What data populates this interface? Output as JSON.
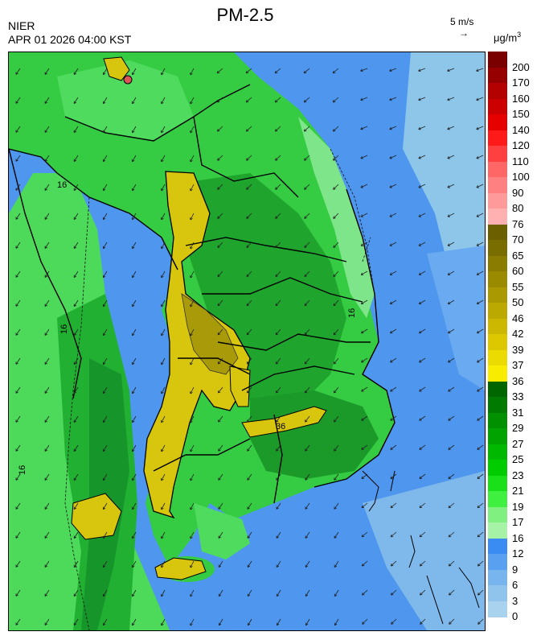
{
  "header": {
    "title": "PM-2.5",
    "agency": "NIER",
    "datetime": "APR 01 2026 04:00 KST",
    "wind_scale": "5 m/s",
    "wind_arrow": "→",
    "unit_base": "μg/m",
    "unit_exp": "3"
  },
  "legend": {
    "items": [
      {
        "label": "200",
        "color": "#7a0000"
      },
      {
        "label": "170",
        "color": "#960000"
      },
      {
        "label": "160",
        "color": "#b30000"
      },
      {
        "label": "150",
        "color": "#cc0000"
      },
      {
        "label": "140",
        "color": "#e60000"
      },
      {
        "label": "120",
        "color": "#ff1a1a"
      },
      {
        "label": "110",
        "color": "#ff4040"
      },
      {
        "label": "100",
        "color": "#ff6666"
      },
      {
        "label": "90",
        "color": "#ff8080"
      },
      {
        "label": "80",
        "color": "#ff9a9a"
      },
      {
        "label": "76",
        "color": "#ffb0b0"
      },
      {
        "label": "70",
        "color": "#6b5f00"
      },
      {
        "label": "65",
        "color": "#7a6d00"
      },
      {
        "label": "60",
        "color": "#8a7c00"
      },
      {
        "label": "55",
        "color": "#9a8a00"
      },
      {
        "label": "50",
        "color": "#aa9900"
      },
      {
        "label": "46",
        "color": "#bba800"
      },
      {
        "label": "42",
        "color": "#ccb800"
      },
      {
        "label": "39",
        "color": "#ddc800"
      },
      {
        "label": "37",
        "color": "#ecdb00"
      },
      {
        "label": "36",
        "color": "#f8ec00"
      },
      {
        "label": "33",
        "color": "#006600"
      },
      {
        "label": "31",
        "color": "#007a00"
      },
      {
        "label": "29",
        "color": "#009000"
      },
      {
        "label": "27",
        "color": "#00a300"
      },
      {
        "label": "25",
        "color": "#00b800"
      },
      {
        "label": "23",
        "color": "#00cc00"
      },
      {
        "label": "21",
        "color": "#1ae01a"
      },
      {
        "label": "19",
        "color": "#40f040"
      },
      {
        "label": "17",
        "color": "#80f080"
      },
      {
        "label": "16",
        "color": "#a6f2a6"
      },
      {
        "label": "12",
        "color": "#3b8cf2"
      },
      {
        "label": "9",
        "color": "#5aa0f0"
      },
      {
        "label": "6",
        "color": "#78b4ee"
      },
      {
        "label": "3",
        "color": "#90c4ec"
      },
      {
        "label": "0",
        "color": "#a8d2ee"
      }
    ]
  },
  "map": {
    "contour_labels": [
      "16",
      "16",
      "16",
      "16",
      "36"
    ],
    "colors": {
      "sea_far": "#8ec6ea",
      "sea": "#4e96ee",
      "sea_near": "#5a9ef0",
      "land_light": "#3ad24a",
      "land": "#22bb33",
      "land_dark": "#129a22",
      "plume": "#d8c60e",
      "plume_dark": "#a99a0a",
      "hotspot": "#d55"
    }
  }
}
